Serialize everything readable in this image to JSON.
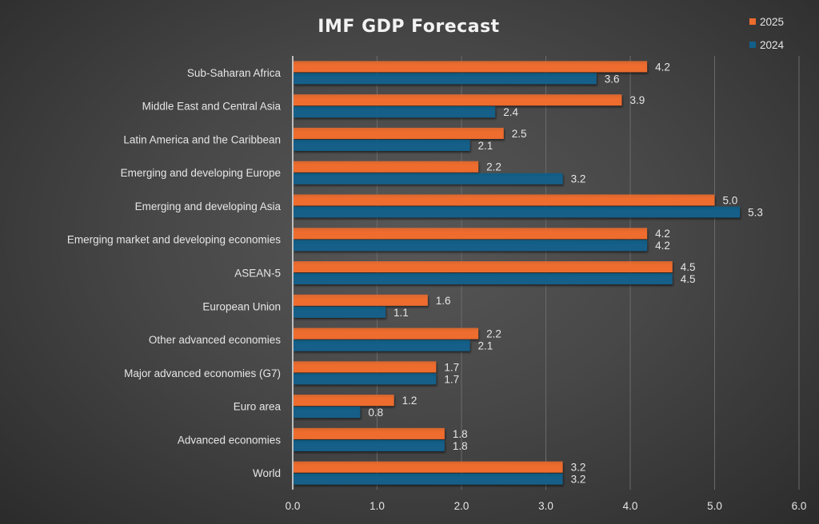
{
  "chart_data": {
    "type": "bar",
    "orientation": "horizontal",
    "title": "IMF GDP Forecast",
    "xlabel": "",
    "ylabel": "",
    "xlim": [
      0,
      6
    ],
    "x_ticks": [
      "0.0",
      "1.0",
      "2.0",
      "3.0",
      "4.0",
      "5.0",
      "6.0"
    ],
    "grid": "vertical",
    "legend_position": "top-right",
    "categories": [
      "Sub-Saharan Africa",
      "Middle East and Central Asia",
      "Latin America and the Caribbean",
      "Emerging and developing Europe",
      "Emerging and developing Asia",
      "Emerging market and developing economies",
      "ASEAN-5",
      "European Union",
      "Other advanced economies",
      "Major advanced economies (G7)",
      "Euro area",
      "Advanced economies",
      "World"
    ],
    "series": [
      {
        "name": "2025",
        "color": "#ed6c2d",
        "values": [
          4.2,
          3.9,
          2.5,
          2.2,
          5.0,
          4.2,
          4.5,
          1.6,
          2.2,
          1.7,
          1.2,
          1.8,
          3.2
        ]
      },
      {
        "name": "2024",
        "color": "#125f89",
        "values": [
          3.6,
          2.4,
          2.1,
          3.2,
          5.3,
          4.2,
          4.5,
          1.1,
          2.1,
          1.7,
          0.8,
          1.8,
          3.2
        ]
      }
    ]
  }
}
